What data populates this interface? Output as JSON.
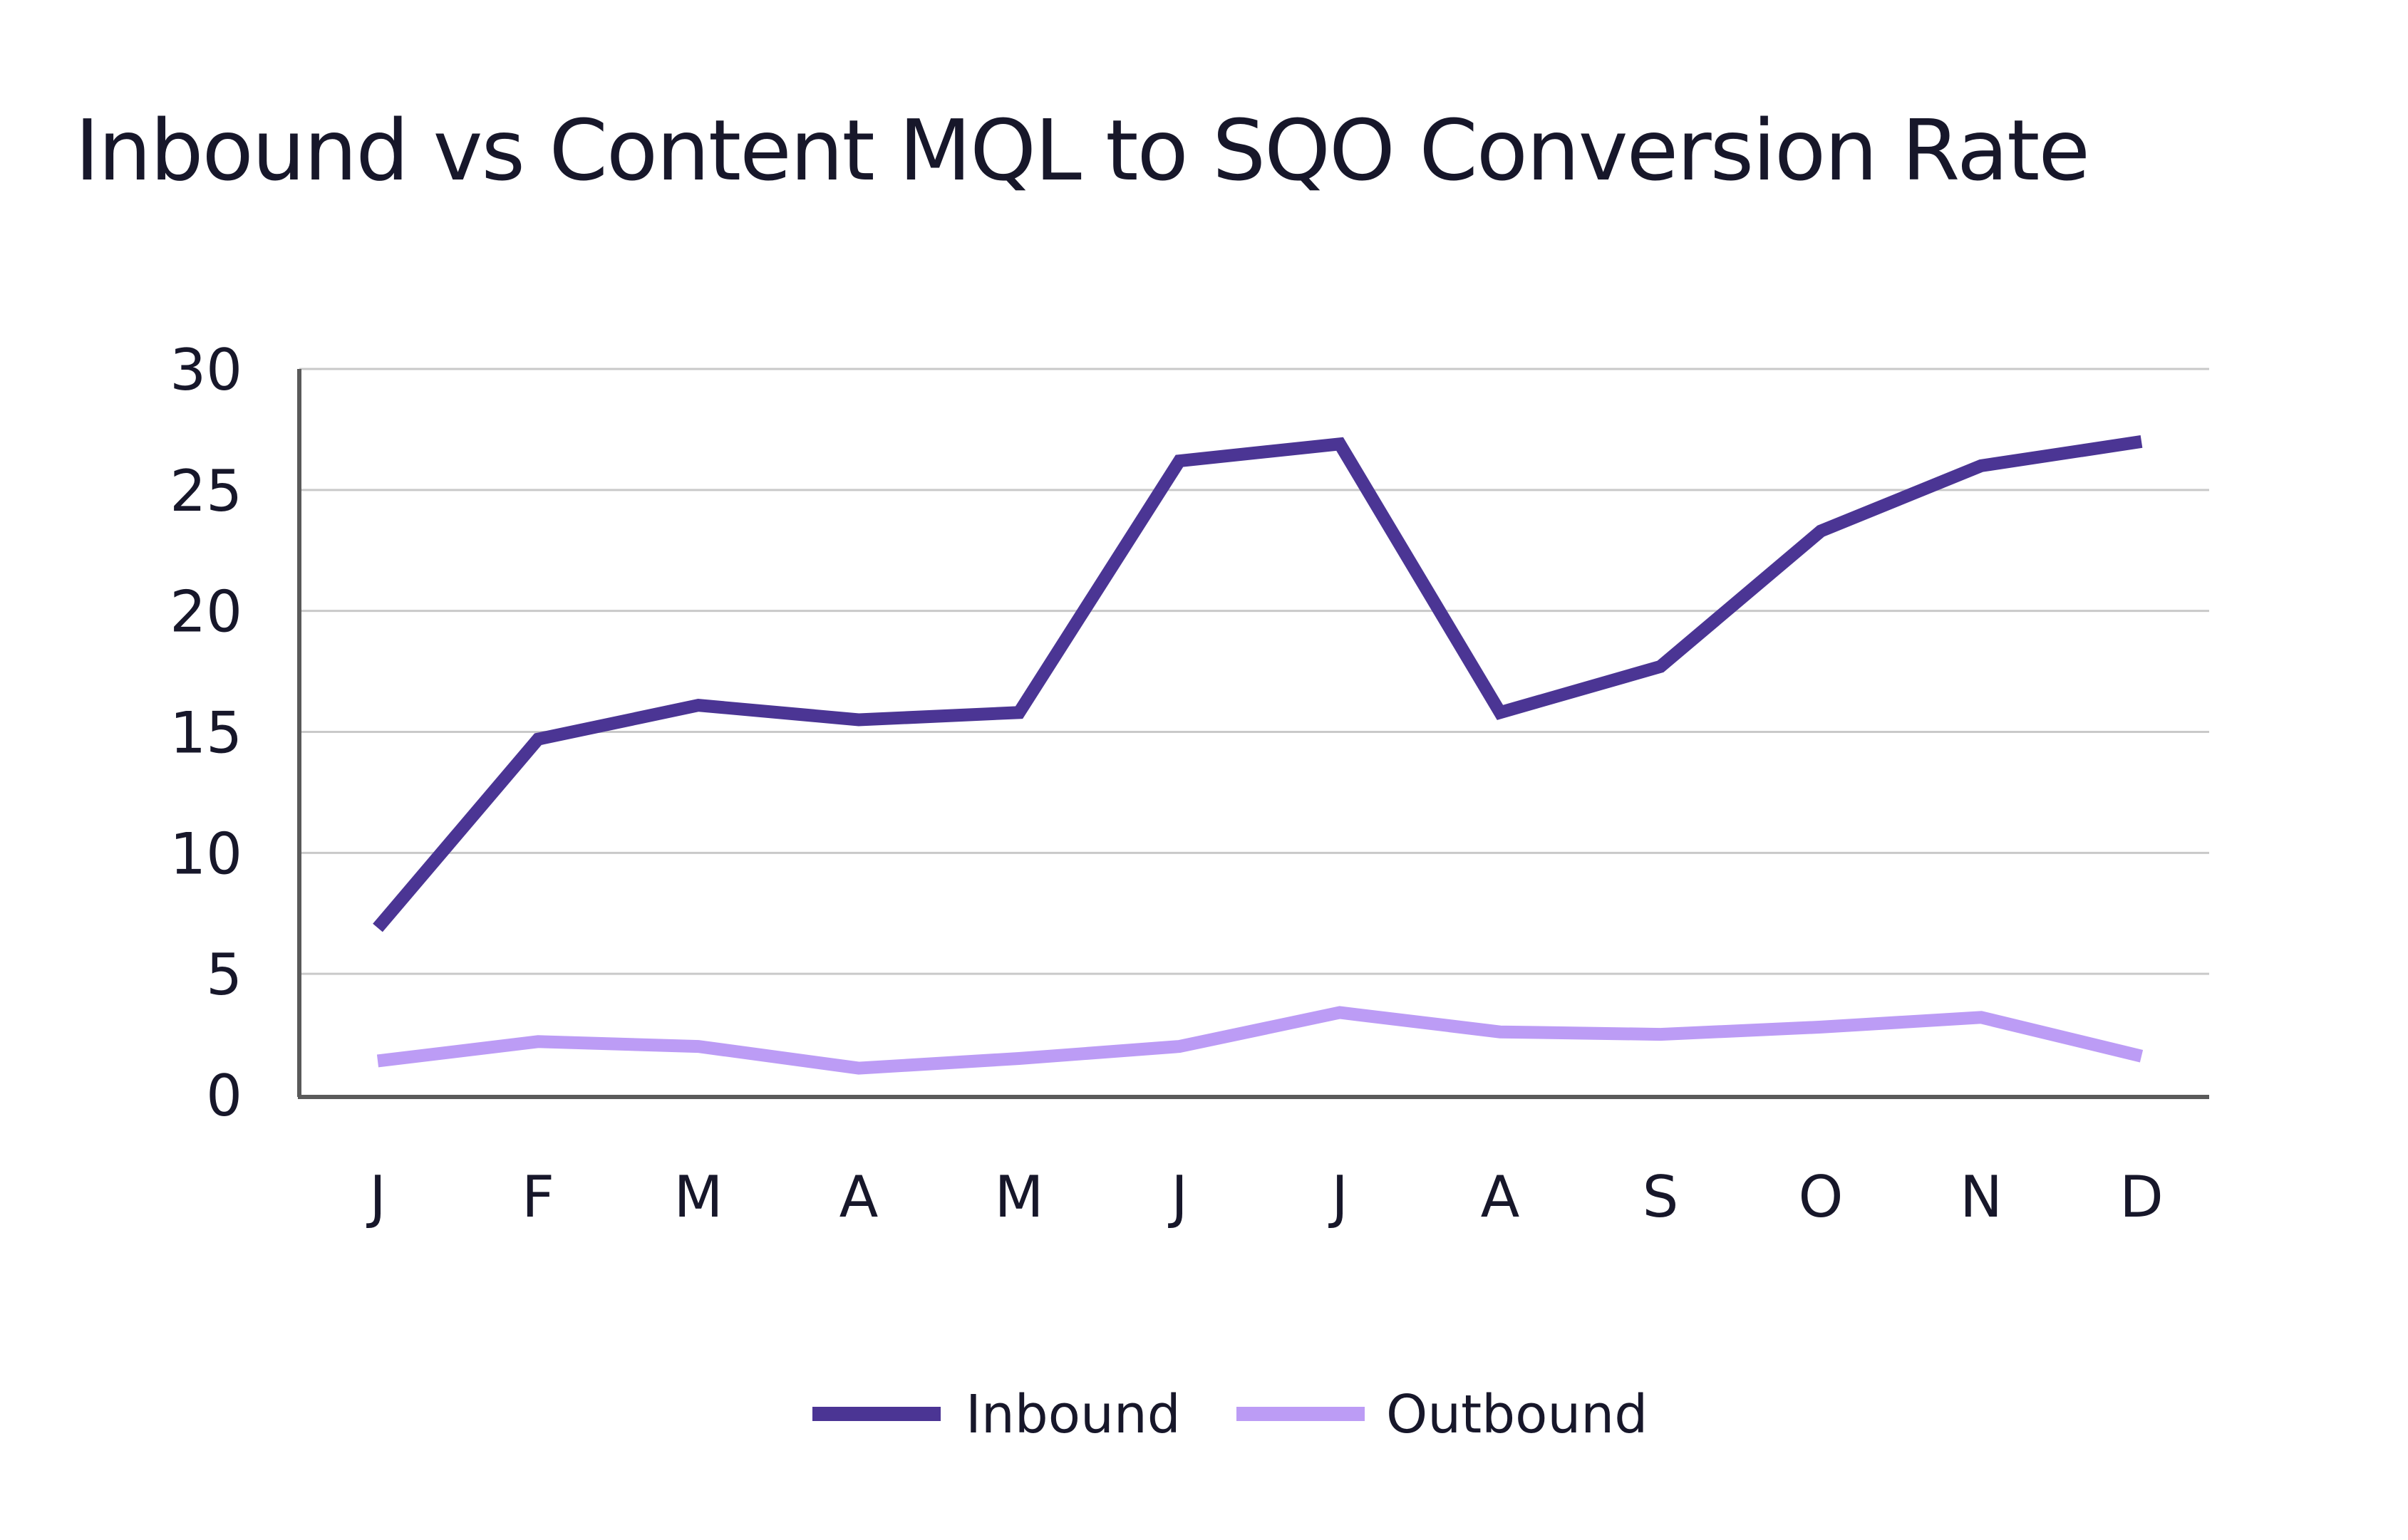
{
  "chart_data": {
    "type": "line",
    "title": "Inbound vs Content MQL to SQO Conversion Rate",
    "xlabel": "",
    "ylabel": "",
    "categories": [
      "J",
      "F",
      "M",
      "A",
      "M",
      "J",
      "J",
      "A",
      "S",
      "O",
      "N",
      "D"
    ],
    "yticks": [
      "0",
      "5",
      "10",
      "15",
      "20",
      "25",
      "30"
    ],
    "ytick_values": [
      0,
      5,
      10,
      15,
      20,
      25,
      30
    ],
    "ylim": [
      0,
      30
    ],
    "grid": true,
    "legend_position": "bottom-center",
    "series": [
      {
        "name": "Inbound",
        "color": "#4b3594",
        "values": [
          6.9,
          14.7,
          16.1,
          15.5,
          15.8,
          26.2,
          26.9,
          15.8,
          17.7,
          23.3,
          26.0,
          27.0
        ]
      },
      {
        "name": "Outbound",
        "color": "#bc9cf5",
        "values": [
          1.4,
          2.2,
          2.0,
          1.1,
          1.5,
          2.0,
          3.4,
          2.6,
          2.5,
          2.8,
          3.2,
          1.6
        ]
      }
    ]
  }
}
